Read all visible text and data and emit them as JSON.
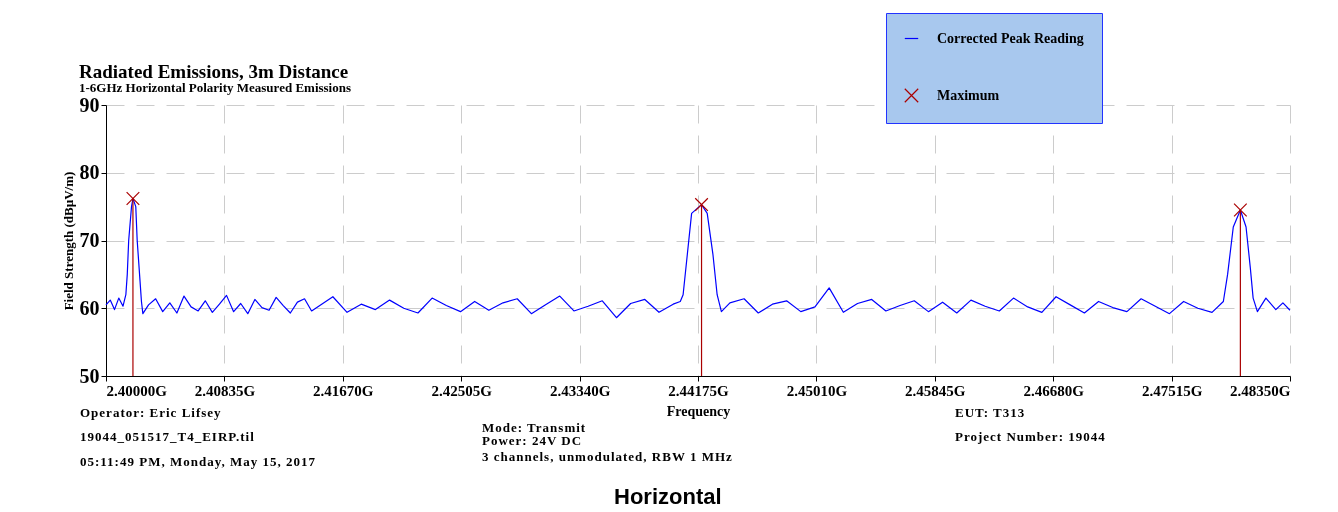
{
  "chart_data": {
    "type": "line",
    "title": "Radiated Emissions, 3m Distance",
    "subtitle": "1-6GHz Horizontal Polarity Measured Emissions",
    "xlabel": "Frequency",
    "ylabel": "Field Strength (dBµV/m)",
    "xlim": [
      2.4,
      2.4835
    ],
    "ylim": [
      50,
      90
    ],
    "xticks": [
      {
        "value": 2.4,
        "label": "2.40000G"
      },
      {
        "value": 2.40835,
        "label": "2.40835G"
      },
      {
        "value": 2.4167,
        "label": "2.41670G"
      },
      {
        "value": 2.42505,
        "label": "2.42505G"
      },
      {
        "value": 2.4334,
        "label": "2.43340G"
      },
      {
        "value": 2.44175,
        "label": "2.44175G"
      },
      {
        "value": 2.4501,
        "label": "2.45010G"
      },
      {
        "value": 2.45845,
        "label": "2.45845G"
      },
      {
        "value": 2.4668,
        "label": "2.46680G"
      },
      {
        "value": 2.47515,
        "label": "2.47515G"
      },
      {
        "value": 2.4835,
        "label": "2.48350G"
      }
    ],
    "yticks": [
      50,
      60,
      70,
      80,
      90
    ],
    "grid": true,
    "legend": "top right",
    "line_style": "solid",
    "marker": "none",
    "series": [
      {
        "name": "Corrected Peak Reading",
        "color": "#0000ff",
        "x": [
          2.4,
          2.4003,
          2.4006,
          2.4009,
          2.4012,
          2.4014,
          2.4015,
          2.4016,
          2.4018,
          2.4019,
          2.4021,
          2.4022,
          2.4024,
          2.4025,
          2.4026,
          2.403,
          2.4035,
          2.404,
          2.4045,
          2.405,
          2.4055,
          2.406,
          2.4065,
          2.407,
          2.4075,
          2.408,
          2.4085,
          2.409,
          2.4095,
          2.41,
          2.4105,
          2.411,
          2.4115,
          2.412,
          2.4125,
          2.413,
          2.4135,
          2.414,
          2.4145,
          2.415,
          2.416,
          2.417,
          2.418,
          2.419,
          2.42,
          2.421,
          2.422,
          2.423,
          2.424,
          2.425,
          2.426,
          2.427,
          2.428,
          2.429,
          2.43,
          2.431,
          2.432,
          2.433,
          2.434,
          2.435,
          2.436,
          2.437,
          2.438,
          2.439,
          2.44,
          2.4405,
          2.4407,
          2.441,
          2.4413,
          2.442,
          2.4424,
          2.4428,
          2.4431,
          2.4434,
          2.444,
          2.445,
          2.446,
          2.447,
          2.448,
          2.449,
          2.45,
          2.451,
          2.452,
          2.453,
          2.454,
          2.455,
          2.456,
          2.457,
          2.458,
          2.459,
          2.46,
          2.461,
          2.462,
          2.463,
          2.464,
          2.465,
          2.466,
          2.467,
          2.468,
          2.469,
          2.47,
          2.471,
          2.472,
          2.473,
          2.474,
          2.475,
          2.476,
          2.477,
          2.478,
          2.4788,
          2.4791,
          2.4795,
          2.48,
          2.4804,
          2.4807,
          2.4809,
          2.4812,
          2.4818,
          2.4825,
          2.483,
          2.4835
        ],
        "values": [
          60.5,
          61.2,
          59.8,
          61.5,
          60.3,
          62,
          65,
          70,
          75,
          76.2,
          75,
          70,
          64,
          61,
          59.2,
          60.5,
          61.4,
          59.5,
          60.8,
          59.3,
          61.8,
          60.2,
          59.6,
          61.1,
          59.4,
          60.6,
          61.9,
          59.5,
          60.7,
          59.2,
          61.3,
          60.1,
          59.7,
          61.6,
          60.4,
          59.3,
          60.9,
          61.4,
          59.6,
          60.3,
          61.7,
          59.4,
          60.6,
          59.8,
          61.2,
          60,
          59.3,
          61.5,
          60.4,
          59.5,
          61,
          59.7,
          60.8,
          61.4,
          59.2,
          60.5,
          61.8,
          59.6,
          60.3,
          61.1,
          58.6,
          60.7,
          61.3,
          59.4,
          60.6,
          61,
          62,
          68,
          74,
          75.3,
          74,
          68,
          62,
          59.5,
          60.8,
          61.4,
          59.3,
          60.6,
          61.1,
          59.5,
          60.2,
          63,
          59.4,
          60.7,
          61.3,
          59.6,
          60.4,
          61.1,
          59.5,
          60.9,
          59.3,
          61.2,
          60.3,
          59.6,
          61.5,
          60.2,
          59.4,
          61.7,
          60.5,
          59.3,
          61,
          60.1,
          59.5,
          61.4,
          60.3,
          59.2,
          61,
          60,
          59.4,
          61,
          65,
          72,
          74.5,
          72,
          66,
          61.5,
          59.5,
          61.5,
          59.8,
          60.8,
          59.7
        ]
      },
      {
        "name": "Maximum",
        "type": "lollipop",
        "color": "#aa0000",
        "marker": "cross",
        "x": [
          2.4019,
          2.442,
          2.48
        ],
        "values": [
          76.2,
          75.3,
          74.5
        ]
      }
    ],
    "annotations": [
      "Operator: Eric Lifsey",
      "19044_051517_T4_EIRP.til",
      "05:11:49 PM, Monday, May 15, 2017",
      "Mode: Transmit",
      "Power: 24V DC",
      "3 channels, unmodulated, RBW 1 MHz",
      "EUT: T313",
      "Project Number: 19044",
      "Horizontal"
    ]
  }
}
